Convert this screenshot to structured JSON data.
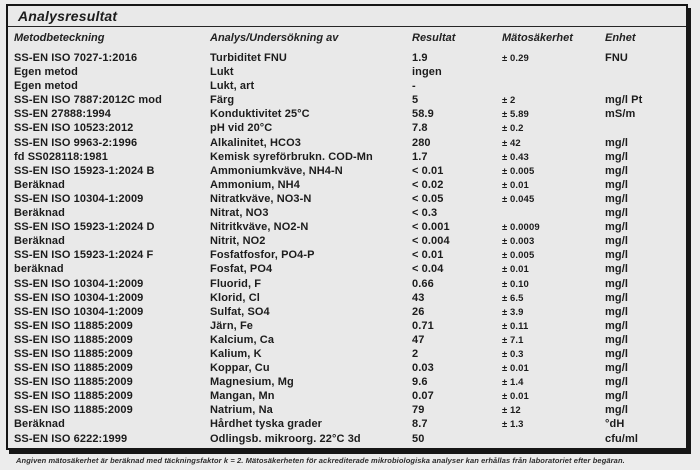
{
  "page": {
    "title": "Analysresultat",
    "footnote": "Angiven mätosäkerhet är beräknad med täckningsfaktor k = 2. Mätosäkerheten för ackrediterade mikrobiologiska analyser kan erhållas från laboratoriet efter begäran."
  },
  "colors": {
    "panel_background": "#e9e9e9",
    "page_background": "#ececec",
    "border": "#161616",
    "text": "#1c1c1c"
  },
  "table": {
    "columns": [
      "Metodbeteckning",
      "Analys/Undersökning av",
      "Resultat",
      "Mätosäkerhet",
      "Enhet"
    ],
    "rows": [
      {
        "method": "SS-EN ISO 7027-1:2016",
        "analysis": "Turbiditet FNU",
        "result": "1.9",
        "uncertainty": "± 0.29",
        "unit": "FNU"
      },
      {
        "method": "Egen metod",
        "analysis": "Lukt",
        "result": "ingen",
        "uncertainty": "",
        "unit": ""
      },
      {
        "method": "Egen metod",
        "analysis": "Lukt, art",
        "result": "-",
        "uncertainty": "",
        "unit": ""
      },
      {
        "method": "SS-EN ISO 7887:2012C mod",
        "analysis": "Färg",
        "result": "5",
        "uncertainty": "± 2",
        "unit": "mg/l Pt"
      },
      {
        "method": "SS-EN 27888:1994",
        "analysis": "Konduktivitet 25°C",
        "result": "58.9",
        "uncertainty": "± 5.89",
        "unit": "mS/m"
      },
      {
        "method": "SS-EN ISO 10523:2012",
        "analysis": "pH vid 20°C",
        "result": "7.8",
        "uncertainty": "± 0.2",
        "unit": ""
      },
      {
        "method": "SS-EN ISO 9963-2:1996",
        "analysis": "Alkalinitet, HCO3",
        "result": "280",
        "uncertainty": "± 42",
        "unit": "mg/l"
      },
      {
        "method": "fd SS028118:1981",
        "analysis": "Kemisk syreförbrukn. COD-Mn",
        "result": "1.7",
        "uncertainty": "± 0.43",
        "unit": "mg/l"
      },
      {
        "method": "SS-EN ISO 15923-1:2024 B",
        "analysis": "Ammoniumkväve, NH4-N",
        "result": "< 0.01",
        "uncertainty": "± 0.005",
        "unit": "mg/l"
      },
      {
        "method": "Beräknad",
        "analysis": "Ammonium, NH4",
        "result": "< 0.02",
        "uncertainty": "± 0.01",
        "unit": "mg/l"
      },
      {
        "method": "SS-EN ISO 10304-1:2009",
        "analysis": "Nitratkväve, NO3-N",
        "result": "< 0.05",
        "uncertainty": "± 0.045",
        "unit": "mg/l"
      },
      {
        "method": "Beräknad",
        "analysis": "Nitrat, NO3",
        "result": "< 0.3",
        "uncertainty": "",
        "unit": "mg/l"
      },
      {
        "method": "SS-EN ISO 15923-1:2024 D",
        "analysis": "Nitritkväve, NO2-N",
        "result": "< 0.001",
        "uncertainty": "± 0.0009",
        "unit": "mg/l"
      },
      {
        "method": "Beräknad",
        "analysis": "Nitrit, NO2",
        "result": "< 0.004",
        "uncertainty": "± 0.003",
        "unit": "mg/l"
      },
      {
        "method": "SS-EN ISO 15923-1:2024 F",
        "analysis": "Fosfatfosfor, PO4-P",
        "result": "< 0.01",
        "uncertainty": "± 0.005",
        "unit": "mg/l"
      },
      {
        "method": "beräknad",
        "analysis": "Fosfat, PO4",
        "result": "< 0.04",
        "uncertainty": "± 0.01",
        "unit": "mg/l"
      },
      {
        "method": "SS-EN ISO 10304-1:2009",
        "analysis": "Fluorid, F",
        "result": "0.66",
        "uncertainty": "± 0.10",
        "unit": "mg/l"
      },
      {
        "method": "SS-EN ISO 10304-1:2009",
        "analysis": "Klorid, Cl",
        "result": "43",
        "uncertainty": "± 6.5",
        "unit": "mg/l"
      },
      {
        "method": "SS-EN ISO 10304-1:2009",
        "analysis": "Sulfat, SO4",
        "result": "26",
        "uncertainty": "± 3.9",
        "unit": "mg/l"
      },
      {
        "method": "SS-EN ISO 11885:2009",
        "analysis": "Järn, Fe",
        "result": "0.71",
        "uncertainty": "± 0.11",
        "unit": "mg/l"
      },
      {
        "method": "SS-EN ISO 11885:2009",
        "analysis": "Kalcium, Ca",
        "result": "47",
        "uncertainty": "± 7.1",
        "unit": "mg/l"
      },
      {
        "method": "SS-EN ISO 11885:2009",
        "analysis": "Kalium, K",
        "result": "2",
        "uncertainty": "± 0.3",
        "unit": "mg/l"
      },
      {
        "method": "SS-EN ISO 11885:2009",
        "analysis": "Koppar, Cu",
        "result": "0.03",
        "uncertainty": "± 0.01",
        "unit": "mg/l"
      },
      {
        "method": "SS-EN ISO 11885:2009",
        "analysis": "Magnesium, Mg",
        "result": "9.6",
        "uncertainty": "± 1.4",
        "unit": "mg/l"
      },
      {
        "method": "SS-EN ISO 11885:2009",
        "analysis": "Mangan, Mn",
        "result": "0.07",
        "uncertainty": "± 0.01",
        "unit": "mg/l"
      },
      {
        "method": "SS-EN ISO 11885:2009",
        "analysis": "Natrium, Na",
        "result": "79",
        "uncertainty": "± 12",
        "unit": "mg/l"
      },
      {
        "method": "Beräknad",
        "analysis": "Hårdhet tyska grader",
        "result": "8.7",
        "uncertainty": "± 1.3",
        "unit": "°dH"
      },
      {
        "method": "SS-EN ISO 6222:1999",
        "analysis": "Odlingsb. mikroorg. 22°C 3d",
        "result": "50",
        "uncertainty": "",
        "unit": "cfu/ml"
      }
    ]
  }
}
